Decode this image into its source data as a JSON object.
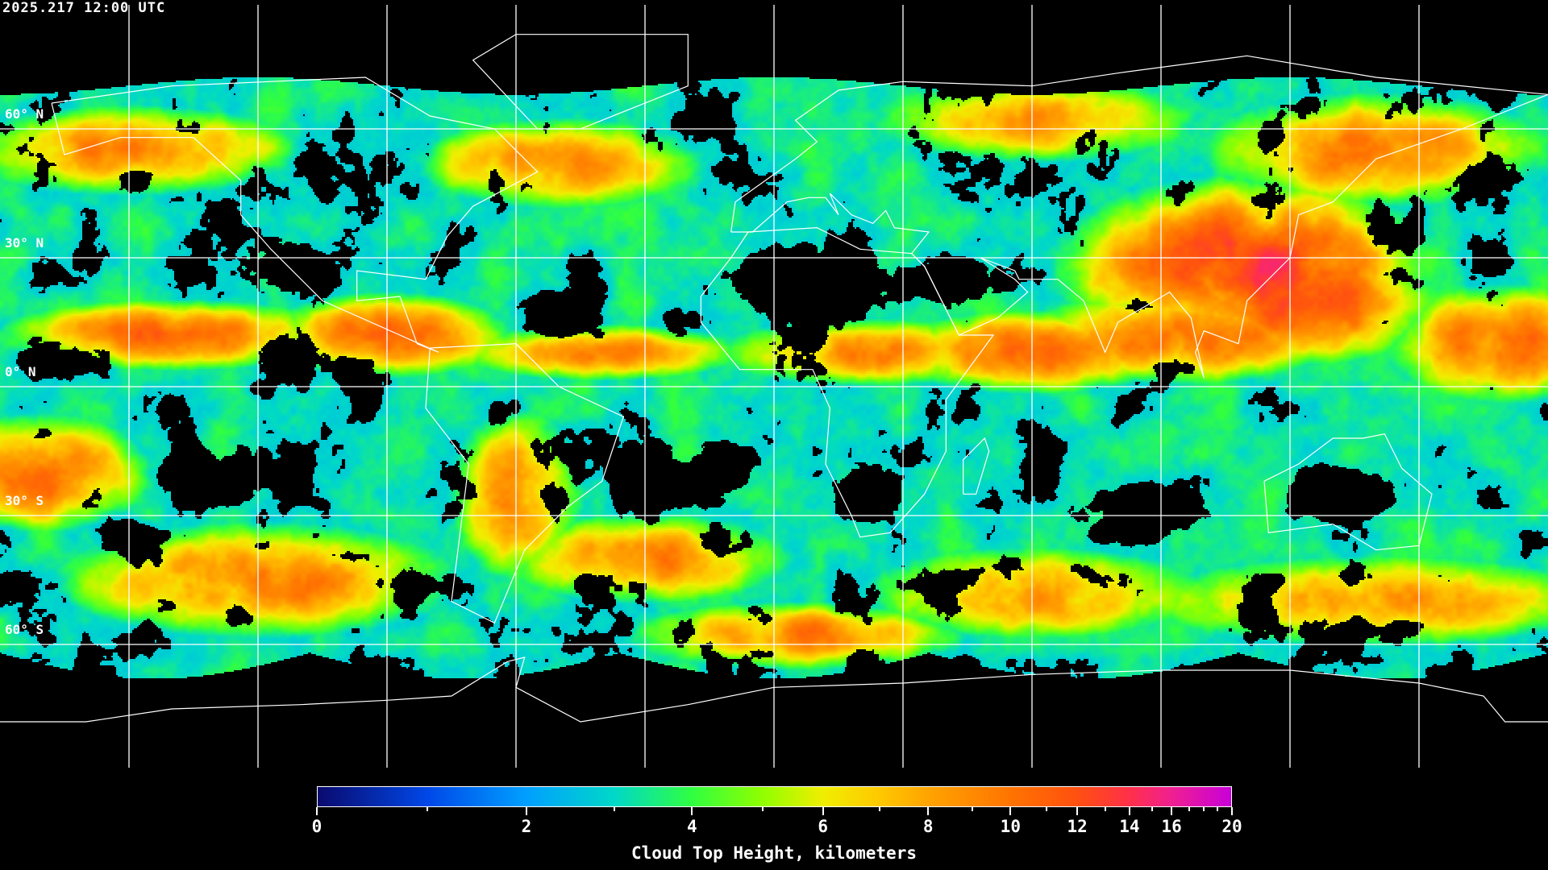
{
  "header": {
    "timestamp": "2025.217 12:00 UTC"
  },
  "map": {
    "projection": "equirectangular",
    "graticule_color": "#ffffff",
    "coastline_color": "#ffffff",
    "background": "#000000",
    "lat_labels": [
      "60° N",
      "30° N",
      "0° N",
      "30° S",
      "60° S"
    ]
  },
  "colorbar": {
    "label": "Cloud Top Height, kilometers",
    "min": 0,
    "max": 20,
    "major_ticks": [
      "0",
      "2",
      "4",
      "6",
      "8",
      "10",
      "12",
      "14",
      "16",
      "20"
    ],
    "minor_ticks": [
      1,
      3,
      5,
      7,
      9,
      11,
      13,
      15,
      17,
      18,
      19
    ],
    "colormap": [
      {
        "value": 0,
        "color": "#0a0a6e"
      },
      {
        "value": 1,
        "color": "#0048e8"
      },
      {
        "value": 2,
        "color": "#00a0ff"
      },
      {
        "value": 3,
        "color": "#00d8c8"
      },
      {
        "value": 4,
        "color": "#30ff40"
      },
      {
        "value": 5,
        "color": "#90ff00"
      },
      {
        "value": 6,
        "color": "#f0ee00"
      },
      {
        "value": 7,
        "color": "#ffc800"
      },
      {
        "value": 8,
        "color": "#ffa400"
      },
      {
        "value": 10,
        "color": "#ff7400"
      },
      {
        "value": 12,
        "color": "#ff5010"
      },
      {
        "value": 14,
        "color": "#ff3048"
      },
      {
        "value": 16,
        "color": "#f02090"
      },
      {
        "value": 20,
        "color": "#c800d8"
      }
    ]
  }
}
